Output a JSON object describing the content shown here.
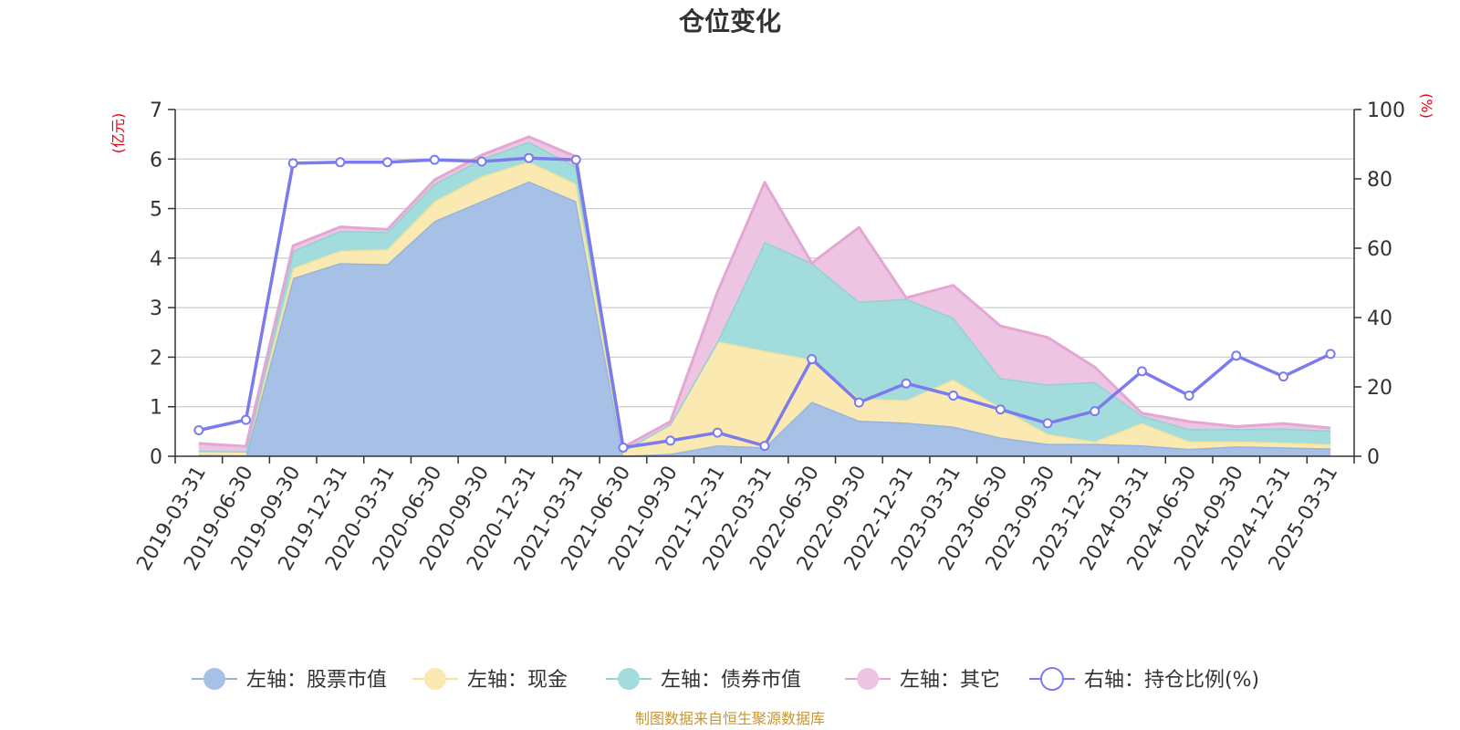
{
  "chart_data": {
    "type": "area",
    "title": "仓位变化",
    "left_axis_unit": "(亿元)",
    "right_axis_unit": "(%)",
    "source": "制图数据来自恒生聚源数据库",
    "ylim_left": [
      0,
      7
    ],
    "ylim_right": [
      0,
      100
    ],
    "yticks_left": [
      "0",
      "1",
      "2",
      "3",
      "4",
      "5",
      "6",
      "7"
    ],
    "yticks_right": [
      "0",
      "20",
      "40",
      "60",
      "80",
      "100"
    ],
    "grid": true,
    "legend_position": "bottom",
    "categories": [
      "2019-03-31",
      "2019-06-30",
      "2019-09-30",
      "2019-12-31",
      "2020-03-31",
      "2020-06-30",
      "2020-09-30",
      "2020-12-31",
      "2021-03-31",
      "2021-06-30",
      "2021-09-30",
      "2021-12-31",
      "2022-03-31",
      "2022-06-30",
      "2022-09-30",
      "2022-12-31",
      "2023-03-31",
      "2023-06-30",
      "2023-09-30",
      "2023-12-31",
      "2024-03-31",
      "2024-06-30",
      "2024-09-30",
      "2024-12-31",
      "2025-03-31"
    ],
    "stacked_series": [
      {
        "name": "左轴：股票市值",
        "color": "#a7c0e6",
        "line": "#98b4dd",
        "values": [
          0.03,
          0.02,
          3.6,
          3.9,
          3.88,
          4.75,
          5.15,
          5.55,
          5.15,
          0.01,
          0.05,
          0.22,
          0.18,
          1.1,
          0.72,
          0.68,
          0.6,
          0.38,
          0.25,
          0.25,
          0.22,
          0.15,
          0.2,
          0.18,
          0.16
        ]
      },
      {
        "name": "左轴：现金",
        "color": "#fae9b0",
        "line": "#f5e29a",
        "values": [
          0.08,
          0.08,
          0.2,
          0.25,
          0.3,
          0.4,
          0.5,
          0.4,
          0.35,
          0.1,
          0.6,
          2.1,
          1.95,
          0.85,
          0.45,
          0.45,
          0.95,
          0.6,
          0.2,
          0.05,
          0.45,
          0.15,
          0.1,
          0.1,
          0.08
        ]
      },
      {
        "name": "左轴：债券市值",
        "color": "#a3dcdc",
        "line": "#8fd3d3",
        "values": [
          0.0,
          0.0,
          0.35,
          0.4,
          0.35,
          0.35,
          0.35,
          0.4,
          0.35,
          0.0,
          0.0,
          0.0,
          2.2,
          1.95,
          1.95,
          2.05,
          1.25,
          0.6,
          1.0,
          1.2,
          0.15,
          0.25,
          0.25,
          0.28,
          0.28
        ]
      },
      {
        "name": "左轴：其它",
        "color": "#edc4e2",
        "line": "#e4a7d4",
        "values": [
          0.15,
          0.1,
          0.1,
          0.08,
          0.05,
          0.08,
          0.08,
          0.1,
          0.2,
          0.07,
          0.05,
          1.0,
          1.2,
          0.0,
          1.5,
          0.02,
          0.65,
          1.05,
          0.95,
          0.3,
          0.05,
          0.15,
          0.05,
          0.1,
          0.05
        ]
      }
    ],
    "line_series": {
      "name": "右轴：持仓比例(%)",
      "color": "#7b7bed",
      "values": [
        7.5,
        10.5,
        84.5,
        84.8,
        84.8,
        85.5,
        85,
        86,
        85.5,
        2.5,
        4.5,
        6.8,
        3,
        28,
        15.5,
        21,
        17.5,
        13.5,
        9.5,
        13,
        24.5,
        17.5,
        29,
        23,
        29.5
      ]
    }
  }
}
